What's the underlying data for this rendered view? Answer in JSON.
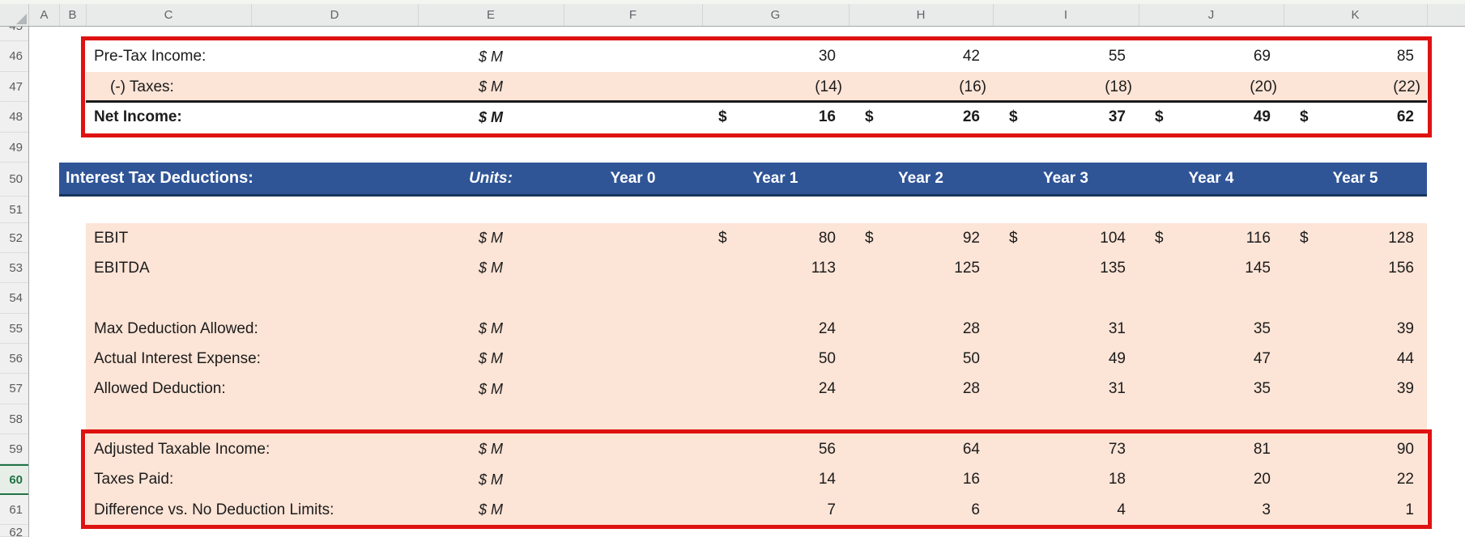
{
  "grid": {
    "column_headers": [
      "A",
      "B",
      "C",
      "D",
      "E",
      "F",
      "G",
      "H",
      "I",
      "J",
      "K"
    ],
    "row_numbers": [
      "45",
      "46",
      "47",
      "48",
      "49",
      "50",
      "51",
      "52",
      "53",
      "54",
      "55",
      "56",
      "57",
      "58",
      "59",
      "60",
      "61",
      "62"
    ],
    "active_row": "60"
  },
  "income_statement": {
    "rows": [
      {
        "row": "46",
        "label": "Pre-Tax Income:",
        "unit": "$ M",
        "values": [
          "30",
          "42",
          "55",
          "69",
          "85"
        ]
      },
      {
        "row": "47",
        "label": "(-) Taxes:",
        "unit": "$ M",
        "values": [
          "(14)",
          "(16)",
          "(18)",
          "(20)",
          "(22)"
        ]
      },
      {
        "row": "48",
        "label": "Net Income:",
        "unit": "$ M",
        "currency": "$",
        "values": [
          "16",
          "26",
          "37",
          "49",
          "62"
        ]
      }
    ]
  },
  "interest_tax_deductions": {
    "title": "Interest Tax Deductions:",
    "units_label": "Units:",
    "year_labels": [
      "Year 0",
      "Year 1",
      "Year 2",
      "Year 3",
      "Year 4",
      "Year 5"
    ],
    "rows": [
      {
        "row": "52",
        "label": "EBIT",
        "unit": "$ M",
        "currency": "$",
        "values": [
          "80",
          "92",
          "104",
          "116",
          "128"
        ]
      },
      {
        "row": "53",
        "label": "EBITDA",
        "unit": "$ M",
        "values": [
          "113",
          "125",
          "135",
          "145",
          "156"
        ]
      },
      {
        "row": "55",
        "label": "Max Deduction Allowed:",
        "unit": "$ M",
        "values": [
          "24",
          "28",
          "31",
          "35",
          "39"
        ]
      },
      {
        "row": "56",
        "label": "Actual Interest Expense:",
        "unit": "$ M",
        "values": [
          "50",
          "50",
          "49",
          "47",
          "44"
        ]
      },
      {
        "row": "57",
        "label": "Allowed Deduction:",
        "unit": "$ M",
        "values": [
          "24",
          "28",
          "31",
          "35",
          "39"
        ]
      },
      {
        "row": "59",
        "label": "Adjusted Taxable Income:",
        "unit": "$ M",
        "values": [
          "56",
          "64",
          "73",
          "81",
          "90"
        ]
      },
      {
        "row": "60",
        "label": "Taxes Paid:",
        "unit": "$ M",
        "values": [
          "14",
          "16",
          "18",
          "20",
          "22"
        ]
      },
      {
        "row": "61",
        "label": "Difference vs. No Deduction Limits:",
        "unit": "$ M",
        "values": [
          "7",
          "6",
          "4",
          "3",
          "1"
        ]
      }
    ]
  },
  "colors": {
    "header_blue": "#2F5597",
    "header_blue_border": "#16365C",
    "fill_peach": "#FCE4D6",
    "border_red": "#DF1212",
    "active_row_green": "#217346"
  }
}
